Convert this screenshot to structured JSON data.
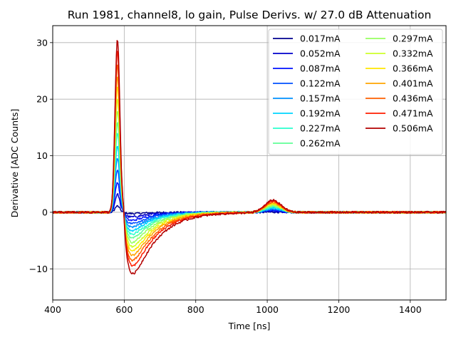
{
  "chart_data": {
    "type": "line",
    "title": "Run 1981, channel8, lo gain, Pulse Derivs. w/ 27.0 dB Attenuation",
    "xlabel": "Time [ns]",
    "ylabel": "Derivative [ADC Counts]",
    "xlim": [
      400,
      1500
    ],
    "ylim": [
      -15.5,
      33
    ],
    "xticks": [
      400,
      600,
      800,
      1000,
      1200,
      1400
    ],
    "yticks": [
      -10,
      0,
      10,
      20,
      30
    ],
    "xtick_labels": [
      "400",
      "600",
      "800",
      "1000",
      "1200",
      "1400"
    ],
    "ytick_labels": [
      "−10",
      "0",
      "10",
      "20",
      "30"
    ],
    "grid": true,
    "legend": {
      "placement": "top-right",
      "columns": 2
    },
    "series": [
      {
        "name": "0.017mA",
        "color": "#00008f",
        "peak": 1.1,
        "trough": -0.3,
        "bump": 0.05
      },
      {
        "name": "0.052mA",
        "color": "#0000cc",
        "peak": 3.2,
        "trough": -1.1,
        "bump": 0.2
      },
      {
        "name": "0.087mA",
        "color": "#0010ff",
        "peak": 5.3,
        "trough": -1.9,
        "bump": 0.35
      },
      {
        "name": "0.122mA",
        "color": "#0050ff",
        "peak": 7.4,
        "trough": -2.6,
        "bump": 0.5
      },
      {
        "name": "0.157mA",
        "color": "#0090ff",
        "peak": 9.6,
        "trough": -3.4,
        "bump": 0.65
      },
      {
        "name": "0.192mA",
        "color": "#00d4ff",
        "peak": 11.8,
        "trough": -4.2,
        "bump": 0.8
      },
      {
        "name": "0.227mA",
        "color": "#29ffce",
        "peak": 14.0,
        "trough": -5.0,
        "bump": 0.95
      },
      {
        "name": "0.262mA",
        "color": "#60ff97",
        "peak": 16.0,
        "trough": -5.8,
        "bump": 1.1
      },
      {
        "name": "0.297mA",
        "color": "#97ff60",
        "peak": 18.0,
        "trough": -6.7,
        "bump": 1.25
      },
      {
        "name": "0.332mA",
        "color": "#ceff29",
        "peak": 20.1,
        "trough": -7.6,
        "bump": 1.4
      },
      {
        "name": "0.366mA",
        "color": "#ffe600",
        "peak": 22.2,
        "trough": -8.5,
        "bump": 1.55
      },
      {
        "name": "0.401mA",
        "color": "#ffa400",
        "peak": 24.2,
        "trough": -9.4,
        "bump": 1.7
      },
      {
        "name": "0.436mA",
        "color": "#ff6000",
        "peak": 26.4,
        "trough": -10.4,
        "bump": 1.85
      },
      {
        "name": "0.471mA",
        "color": "#ff1d00",
        "peak": 28.6,
        "trough": -11.5,
        "bump": 2.0
      },
      {
        "name": "0.506mA",
        "color": "#b20000",
        "peak": 30.7,
        "trough": -13.0,
        "bump": 2.2
      }
    ]
  }
}
